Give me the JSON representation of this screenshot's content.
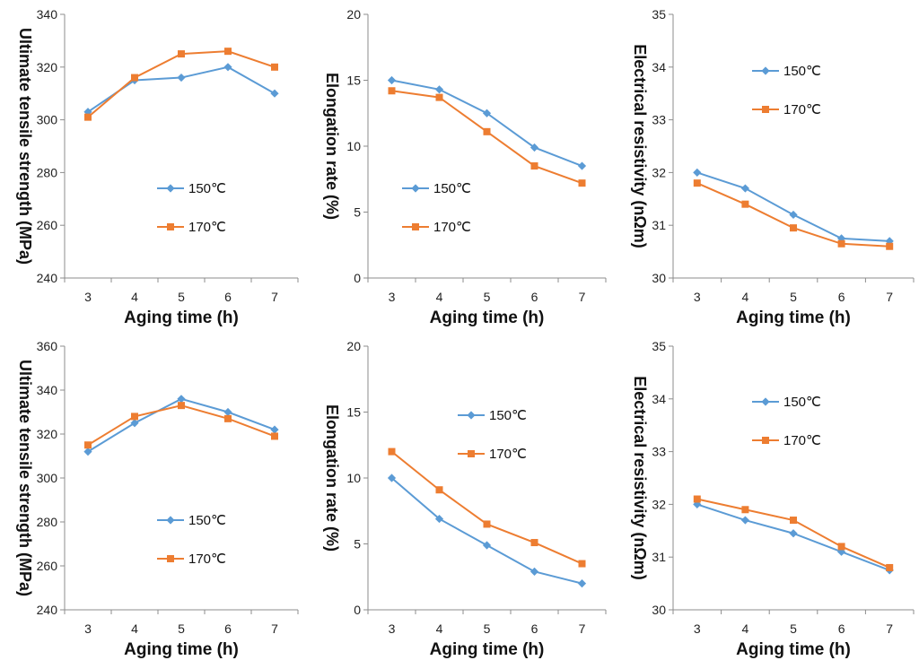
{
  "figure": {
    "colors": {
      "150": "#5b9bd5",
      "170": "#ed7d31"
    },
    "marker_names": {
      "150": "diamond",
      "170": "square"
    }
  },
  "chart_data": [
    {
      "type": "line",
      "xlabel": "Aging time (h)",
      "ylabel": "Ultimate tensile strength (MPa)",
      "x": [
        3,
        4,
        5,
        6,
        7
      ],
      "xticks": [
        "3",
        "4",
        "5",
        "6",
        "7"
      ],
      "ylim": [
        240,
        340
      ],
      "yticks": [
        "240",
        "260",
        "280",
        "300",
        "320",
        "340"
      ],
      "legend_position": "lower-right",
      "series": [
        {
          "name": "150℃",
          "values": [
            303,
            315,
            316,
            320,
            310
          ]
        },
        {
          "name": "170℃",
          "values": [
            301,
            316,
            325,
            326,
            320
          ]
        }
      ]
    },
    {
      "type": "line",
      "xlabel": "Aging time (h)",
      "ylabel": "Elongation rate (%)",
      "x": [
        3,
        4,
        5,
        6,
        7
      ],
      "xticks": [
        "3",
        "4",
        "5",
        "6",
        "7"
      ],
      "ylim": [
        0,
        20
      ],
      "yticks": [
        "0",
        "5",
        "10",
        "15",
        "20"
      ],
      "legend_position": "lower-left",
      "series": [
        {
          "name": "150℃",
          "values": [
            15.0,
            14.3,
            12.5,
            9.9,
            8.5
          ]
        },
        {
          "name": "170℃",
          "values": [
            14.2,
            13.7,
            11.1,
            8.5,
            7.2
          ]
        }
      ]
    },
    {
      "type": "line",
      "xlabel": "Aging time (h)",
      "ylabel": "Electrical resistivity (nΩm)",
      "x": [
        3,
        4,
        5,
        6,
        7
      ],
      "xticks": [
        "3",
        "4",
        "5",
        "6",
        "7"
      ],
      "ylim": [
        30,
        35
      ],
      "yticks": [
        "30",
        "31",
        "32",
        "33",
        "34",
        "35"
      ],
      "legend_position": "top-right",
      "series": [
        {
          "name": "150℃",
          "values": [
            32.0,
            31.7,
            31.2,
            30.75,
            30.7
          ]
        },
        {
          "name": "170℃",
          "values": [
            31.8,
            31.4,
            30.95,
            30.65,
            30.6
          ]
        }
      ]
    },
    {
      "type": "line",
      "xlabel": "Aging time (h)",
      "ylabel": "Ultimate tensile strength (MPa)",
      "x": [
        3,
        4,
        5,
        6,
        7
      ],
      "xticks": [
        "3",
        "4",
        "5",
        "6",
        "7"
      ],
      "ylim": [
        240,
        360
      ],
      "yticks": [
        "240",
        "260",
        "280",
        "300",
        "320",
        "340",
        "360"
      ],
      "legend_position": "lower-right",
      "series": [
        {
          "name": "150℃",
          "values": [
            312,
            325,
            336,
            330,
            322
          ]
        },
        {
          "name": "170℃",
          "values": [
            315,
            328,
            333,
            327,
            319
          ]
        }
      ]
    },
    {
      "type": "line",
      "xlabel": "Aging time (h)",
      "ylabel": "Elongation rate (%)",
      "x": [
        3,
        4,
        5,
        6,
        7
      ],
      "xticks": [
        "3",
        "4",
        "5",
        "6",
        "7"
      ],
      "ylim": [
        0,
        20
      ],
      "yticks": [
        "0",
        "5",
        "10",
        "15",
        "20"
      ],
      "legend_position": "top-right",
      "series": [
        {
          "name": "150℃",
          "values": [
            10.0,
            6.9,
            4.9,
            2.9,
            2.0
          ]
        },
        {
          "name": "170℃",
          "values": [
            12.0,
            9.1,
            6.5,
            5.1,
            3.5
          ]
        }
      ]
    },
    {
      "type": "line",
      "xlabel": "Aging time (h)",
      "ylabel": "Electrical resistivity (nΩm)",
      "x": [
        3,
        4,
        5,
        6,
        7
      ],
      "xticks": [
        "3",
        "4",
        "5",
        "6",
        "7"
      ],
      "ylim": [
        30,
        35
      ],
      "yticks": [
        "30",
        "31",
        "32",
        "33",
        "34",
        "35"
      ],
      "legend_position": "top-right",
      "series": [
        {
          "name": "150℃",
          "values": [
            32.0,
            31.7,
            31.45,
            31.1,
            30.75
          ]
        },
        {
          "name": "170℃",
          "values": [
            32.1,
            31.9,
            31.7,
            31.2,
            30.8
          ]
        }
      ]
    }
  ]
}
